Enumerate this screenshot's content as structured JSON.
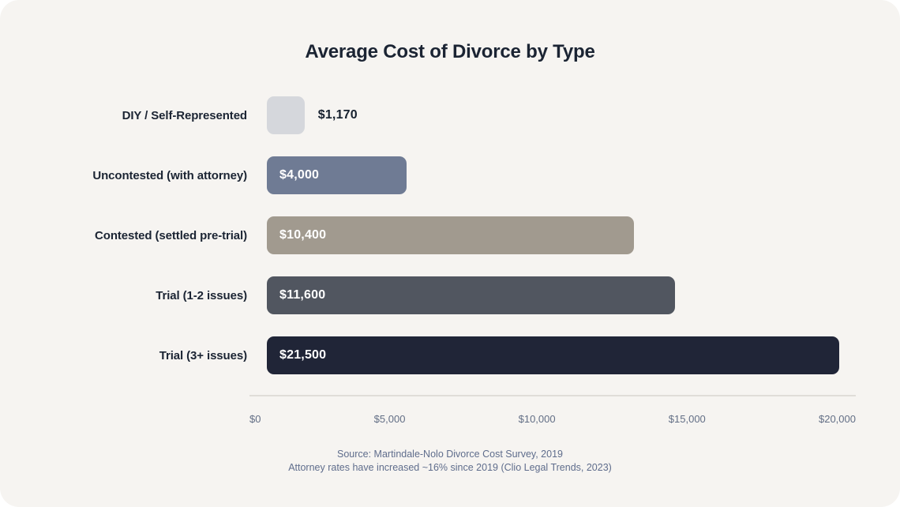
{
  "title": "Average Cost of Divorce by Type",
  "chart_data": {
    "type": "bar",
    "orientation": "horizontal",
    "title": "Average Cost of Divorce by Type",
    "categories": [
      "DIY / Self-Represented",
      "Uncontested (with attorney)",
      "Contested (settled pre-trial)",
      "Trial (1-2 issues)",
      "Trial (3+ issues)"
    ],
    "values": [
      1170,
      4000,
      10400,
      11600,
      21500
    ],
    "value_labels": [
      "$1,170",
      "$4,000",
      "$10,400",
      "$11,600",
      "$21,500"
    ],
    "bar_colors": [
      "#d5d7dc",
      "#6f7b94",
      "#a19a8f",
      "#515660",
      "#202537"
    ],
    "bar_width_pct": [
      6.4,
      23.7,
      62.3,
      69.3,
      97.2
    ],
    "value_label_inside": [
      false,
      true,
      true,
      true,
      true
    ],
    "xticks": [
      "$0",
      "$5,000",
      "$10,000",
      "$15,000",
      "$20,000"
    ],
    "xlim": [
      0,
      20000
    ],
    "xlabel": "",
    "ylabel": "",
    "grid": "off",
    "legend": "none"
  },
  "footer": {
    "line1": "Source: Martindale-Nolo Divorce Cost Survey, 2019",
    "line2": "Attorney rates have increased ~16% since 2019 (Clio Legal Trends, 2023)"
  },
  "colors": {
    "page_bg": "#ffffff",
    "card_bg": "#f6f4f1",
    "title_text": "#1b2433",
    "label_text": "#1b2433",
    "value_inside_text": "#ffffff",
    "value_outside_text": "#16202e",
    "tick_text": "#626e85",
    "footer_text": "#5f6d8c",
    "axis_line": "#e0ddd8"
  }
}
